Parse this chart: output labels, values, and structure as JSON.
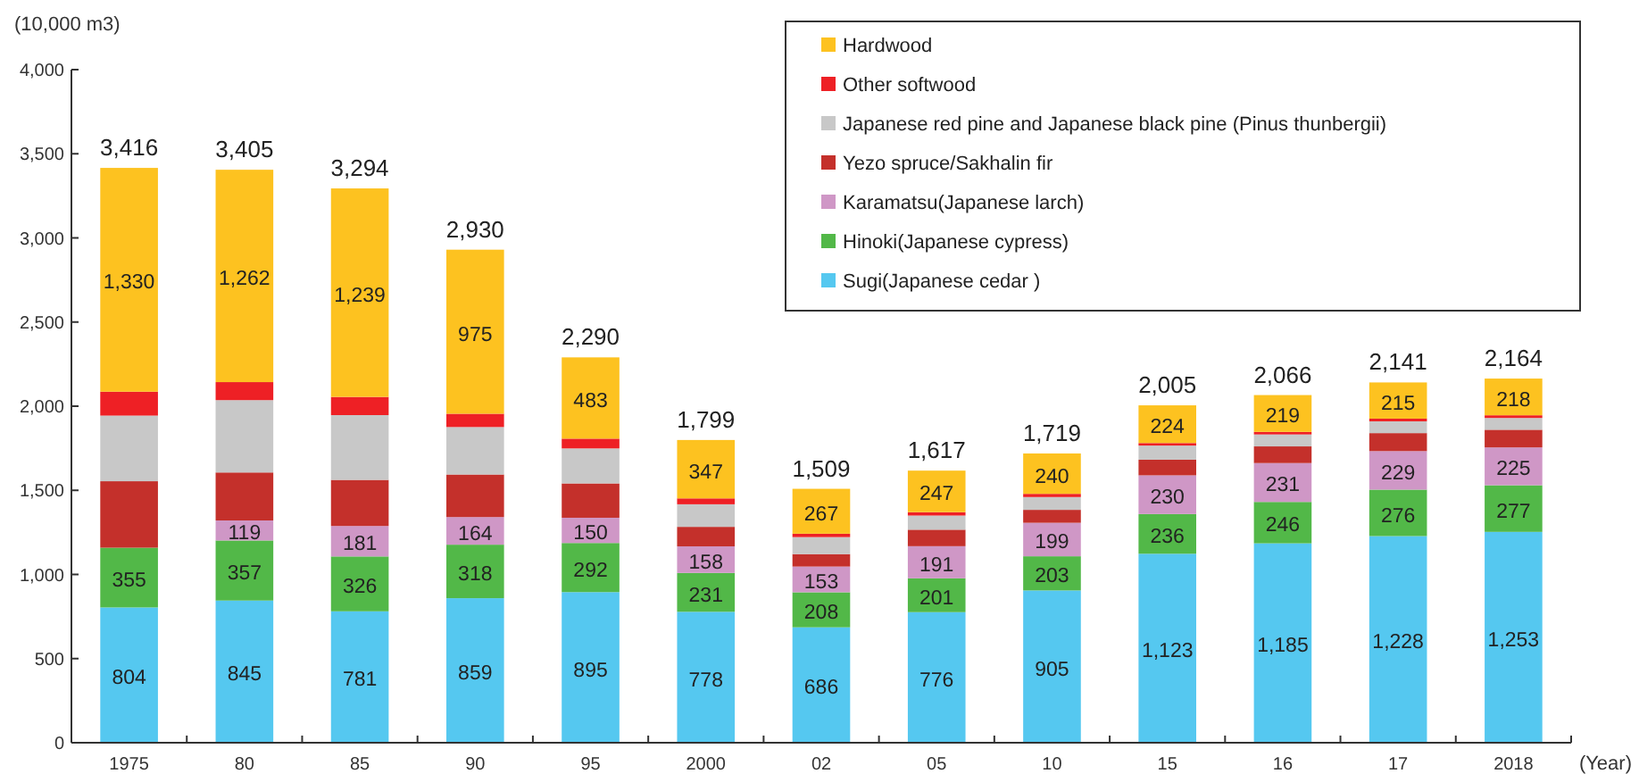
{
  "chart_data": {
    "type": "bar",
    "stacked": true,
    "ylabel": "(10,000 m3)",
    "xlabel": "(Year)",
    "categories": [
      "1975",
      "80",
      "85",
      "90",
      "95",
      "2000",
      "02",
      "05",
      "10",
      "15",
      "16",
      "17",
      "2018"
    ],
    "ylim": [
      0,
      4000
    ],
    "yticks": [
      0,
      {
        "value": 500,
        "label": "500"
      },
      {
        "value": 1000,
        "label": "1,000"
      },
      {
        "value": 1500,
        "label": "1,500"
      },
      {
        "value": 2000,
        "label": "2,000"
      },
      {
        "value": 2500,
        "label": "2,500"
      },
      {
        "value": 3000,
        "label": "3,000"
      },
      {
        "value": 3500,
        "label": "3,500"
      },
      {
        "value": 4000,
        "label": "4,000"
      }
    ],
    "grid": false,
    "legend": "top right",
    "series": [
      {
        "name": "Sugi(Japanese cedar )",
        "color": "#55c8f0",
        "values": [
          804,
          845,
          781,
          859,
          895,
          778,
          686,
          776,
          905,
          1123,
          1185,
          1228,
          1253
        ],
        "value_labels": [
          "804",
          "845",
          "781",
          "859",
          "895",
          "778",
          "686",
          "776",
          "905",
          "1,123",
          "1,185",
          "1,228",
          "1,253"
        ]
      },
      {
        "name": "Hinoki(Japanese cypress)",
        "color": "#52b848",
        "values": [
          355,
          357,
          326,
          318,
          292,
          231,
          208,
          201,
          203,
          236,
          246,
          276,
          277
        ],
        "value_labels": [
          "355",
          "357",
          "326",
          "318",
          "292",
          "231",
          "208",
          "201",
          "203",
          "236",
          "246",
          "276",
          "277"
        ]
      },
      {
        "name": "Karamatsu(Japanese larch)",
        "color": "#cf97c6",
        "values": [
          0,
          119,
          181,
          164,
          150,
          158,
          153,
          191,
          199,
          230,
          231,
          229,
          225
        ],
        "value_labels": [
          null,
          "119",
          "181",
          "164",
          "150",
          "158",
          "153",
          "191",
          "199",
          "230",
          "231",
          "229",
          "225"
        ]
      },
      {
        "name": "Yezo spruce/Sakhalin fir",
        "color": "#c4302b",
        "values": [
          395,
          285,
          274,
          253,
          204,
          116,
          74,
          98,
          77,
          93,
          99,
          107,
          105
        ]
      },
      {
        "name": "Japanese red pine and Japanese black pine (Pinus thunbergii)",
        "color": "#c8c8c8",
        "values": [
          390,
          430,
          385,
          282,
          208,
          134,
          101,
          84,
          76,
          84,
          71,
          70,
          70
        ]
      },
      {
        "name": "Other softwood",
        "color": "#ee2025",
        "values": [
          142,
          107,
          108,
          79,
          58,
          35,
          20,
          20,
          19,
          15,
          15,
          16,
          16
        ]
      },
      {
        "name": "Hardwood",
        "color": "#fdc220",
        "values": [
          1330,
          1262,
          1239,
          975,
          483,
          347,
          267,
          247,
          240,
          224,
          219,
          215,
          218
        ],
        "value_labels": [
          "1,330",
          "1,262",
          "1,239",
          "975",
          "483",
          "347",
          "267",
          "247",
          "240",
          "224",
          "219",
          "215",
          "218"
        ]
      }
    ],
    "totals": [
      "3,416",
      "3,405",
      "3,294",
      "2,930",
      "2,290",
      "1,799",
      "1,509",
      "1,617",
      "1,719",
      "2,005",
      "2,066",
      "2,141",
      "2,164"
    ]
  }
}
